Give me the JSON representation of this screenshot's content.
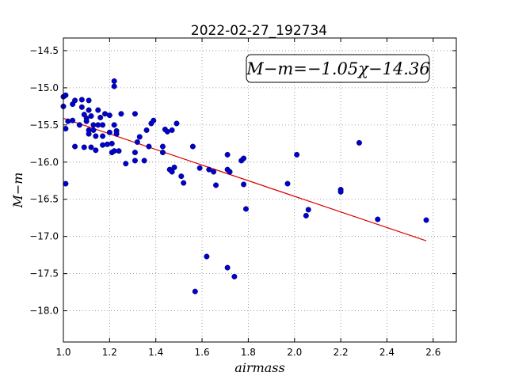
{
  "chart_data": {
    "type": "scatter",
    "title": "2022-02-27_192734",
    "xlabel": "airmass",
    "ylabel": "M−m",
    "xlim": [
      1.0,
      2.7
    ],
    "ylim": [
      -18.42,
      -14.33
    ],
    "y_inverted": true,
    "grid": true,
    "grid_style": "dotted",
    "x_ticks": [
      1.0,
      1.2,
      1.4,
      1.6,
      1.8,
      2.0,
      2.2,
      2.4,
      2.6
    ],
    "x_tick_labels": [
      "1.0",
      "1.2",
      "1.4",
      "1.6",
      "1.8",
      "2.0",
      "2.2",
      "2.4",
      "2.6"
    ],
    "y_ticks": [
      -14.5,
      -15.0,
      -15.5,
      -16.0,
      -16.5,
      -17.0,
      -17.5,
      -18.0
    ],
    "y_tick_labels": [
      "−14.5",
      "−15.0",
      "−15.5",
      "−16.0",
      "−16.5",
      "−17.0",
      "−17.5",
      "−18.0"
    ],
    "annotation": "M−m=−1.05χ−14.36",
    "annotation_position": "top-right",
    "colors": {
      "points": "#0000cc",
      "fit": "#dd0000"
    },
    "fit_line": {
      "slope": -1.05,
      "intercept": -14.36,
      "x_range": [
        1.0,
        2.57
      ]
    },
    "points": [
      [
        1.0,
        -15.12
      ],
      [
        1.0,
        -15.25
      ],
      [
        1.01,
        -15.1
      ],
      [
        1.01,
        -15.55
      ],
      [
        1.01,
        -16.29
      ],
      [
        1.02,
        -15.45
      ],
      [
        1.04,
        -15.44
      ],
      [
        1.04,
        -15.22
      ],
      [
        1.05,
        -15.17
      ],
      [
        1.05,
        -15.79
      ],
      [
        1.07,
        -15.5
      ],
      [
        1.08,
        -15.16
      ],
      [
        1.08,
        -15.26
      ],
      [
        1.09,
        -15.8
      ],
      [
        1.09,
        -15.36
      ],
      [
        1.1,
        -15.41
      ],
      [
        1.1,
        -15.45
      ],
      [
        1.11,
        -15.17
      ],
      [
        1.11,
        -15.3
      ],
      [
        1.11,
        -15.57
      ],
      [
        1.11,
        -15.62
      ],
      [
        1.12,
        -15.38
      ],
      [
        1.12,
        -15.8
      ],
      [
        1.13,
        -15.5
      ],
      [
        1.13,
        -15.57
      ],
      [
        1.14,
        -15.65
      ],
      [
        1.14,
        -15.84
      ],
      [
        1.15,
        -15.3
      ],
      [
        1.15,
        -15.5
      ],
      [
        1.16,
        -15.4
      ],
      [
        1.17,
        -15.5
      ],
      [
        1.17,
        -15.77
      ],
      [
        1.17,
        -15.65
      ],
      [
        1.18,
        -15.35
      ],
      [
        1.19,
        -15.76
      ],
      [
        1.2,
        -15.37
      ],
      [
        1.2,
        -15.6
      ],
      [
        1.21,
        -15.75
      ],
      [
        1.21,
        -15.87
      ],
      [
        1.22,
        -15.5
      ],
      [
        1.22,
        -15.85
      ],
      [
        1.22,
        -14.91
      ],
      [
        1.22,
        -14.98
      ],
      [
        1.23,
        -15.58
      ],
      [
        1.23,
        -15.62
      ],
      [
        1.24,
        -15.85
      ],
      [
        1.25,
        -15.35
      ],
      [
        1.27,
        -16.02
      ],
      [
        1.31,
        -15.35
      ],
      [
        1.31,
        -15.87
      ],
      [
        1.31,
        -15.98
      ],
      [
        1.32,
        -15.73
      ],
      [
        1.33,
        -15.66
      ],
      [
        1.35,
        -15.98
      ],
      [
        1.36,
        -15.57
      ],
      [
        1.37,
        -15.79
      ],
      [
        1.38,
        -15.48
      ],
      [
        1.39,
        -15.44
      ],
      [
        1.43,
        -15.79
      ],
      [
        1.43,
        -15.87
      ],
      [
        1.44,
        -15.56
      ],
      [
        1.45,
        -15.59
      ],
      [
        1.46,
        -16.1
      ],
      [
        1.47,
        -15.57
      ],
      [
        1.47,
        -16.13
      ],
      [
        1.48,
        -16.07
      ],
      [
        1.49,
        -15.48
      ],
      [
        1.51,
        -16.19
      ],
      [
        1.52,
        -16.28
      ],
      [
        1.56,
        -15.79
      ],
      [
        1.57,
        -17.74
      ],
      [
        1.59,
        -16.08
      ],
      [
        1.62,
        -17.27
      ],
      [
        1.63,
        -16.1
      ],
      [
        1.65,
        -16.13
      ],
      [
        1.66,
        -16.31
      ],
      [
        1.71,
        -15.9
      ],
      [
        1.71,
        -16.1
      ],
      [
        1.72,
        -16.13
      ],
      [
        1.71,
        -17.42
      ],
      [
        1.74,
        -17.54
      ],
      [
        1.77,
        -15.98
      ],
      [
        1.78,
        -15.95
      ],
      [
        1.78,
        -16.3
      ],
      [
        1.79,
        -16.63
      ],
      [
        1.97,
        -16.29
      ],
      [
        2.01,
        -15.9
      ],
      [
        2.05,
        -16.72
      ],
      [
        2.06,
        -16.64
      ],
      [
        2.2,
        -16.37
      ],
      [
        2.2,
        -16.4
      ],
      [
        2.28,
        -15.74
      ],
      [
        2.36,
        -16.77
      ],
      [
        2.57,
        -16.78
      ]
    ]
  }
}
